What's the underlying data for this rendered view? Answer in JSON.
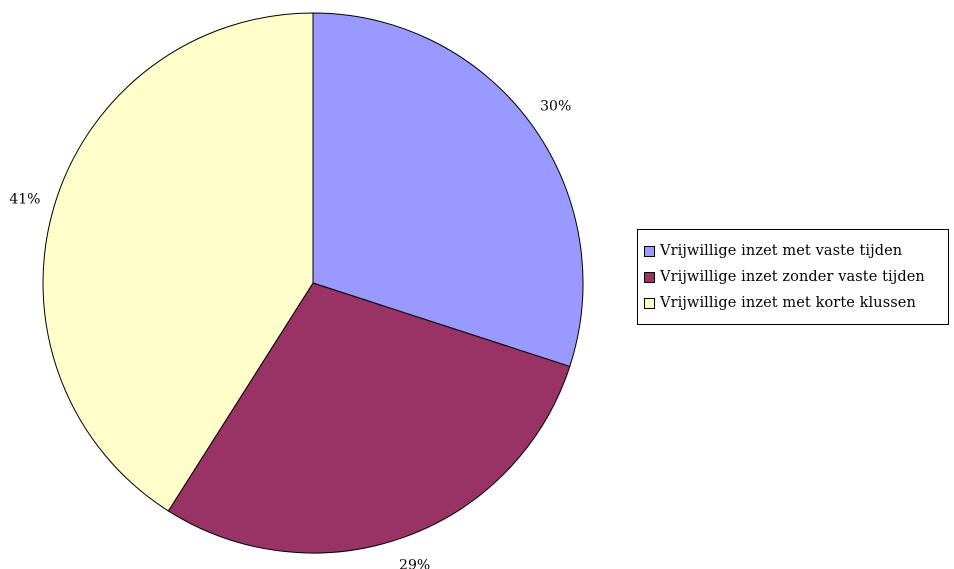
{
  "chart_data": {
    "type": "pie",
    "title": "",
    "categories": [
      "Vrijwillige inzet met vaste tijden",
      "Vrijwillige inzet zonder vaste tijden",
      "Vrijwillige inzet met korte klussen"
    ],
    "values": [
      30,
      29,
      41
    ],
    "labels": [
      "30%",
      "29%",
      "41%"
    ],
    "colors": [
      "#9999ff",
      "#993366",
      "#ffffcc"
    ],
    "start_angle_deg": 0,
    "direction": "clockwise",
    "legend_position": "right"
  }
}
